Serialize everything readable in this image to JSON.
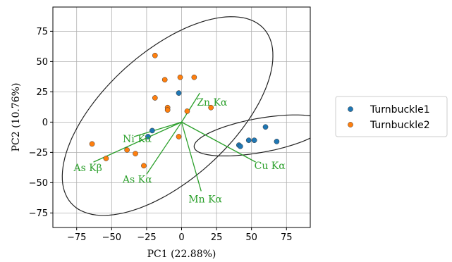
{
  "chart_data": {
    "type": "scatter",
    "xlabel": "PC1 (22.88%)",
    "ylabel": "PC2 (10.76%)",
    "xlim": [
      -92,
      92
    ],
    "ylim": [
      -87,
      95
    ],
    "xticks": [
      -75,
      -50,
      -25,
      0,
      25,
      50,
      75
    ],
    "yticks": [
      -75,
      -50,
      -25,
      0,
      25,
      50,
      75
    ],
    "grid": true,
    "legend_position": "right",
    "series": [
      {
        "name": "Turnbuckle1",
        "color": "#1f77b4",
        "points": [
          {
            "x": -2,
            "y": 24
          },
          {
            "x": -21,
            "y": -7
          },
          {
            "x": -24,
            "y": -12
          },
          {
            "x": 41,
            "y": -19
          },
          {
            "x": 42,
            "y": -20
          },
          {
            "x": 48,
            "y": -15
          },
          {
            "x": 52,
            "y": -15
          },
          {
            "x": 60,
            "y": -4
          },
          {
            "x": 68,
            "y": -16
          }
        ]
      },
      {
        "name": "Turnbuckle2",
        "color": "#ff7f0e",
        "points": [
          {
            "x": -19,
            "y": 55
          },
          {
            "x": -12,
            "y": 35
          },
          {
            "x": -1,
            "y": 37
          },
          {
            "x": 9,
            "y": 37
          },
          {
            "x": -19,
            "y": 20
          },
          {
            "x": -10,
            "y": 12
          },
          {
            "x": -10,
            "y": 10
          },
          {
            "x": 4,
            "y": 9
          },
          {
            "x": 21,
            "y": 12
          },
          {
            "x": -2,
            "y": -12
          },
          {
            "x": -64,
            "y": -18
          },
          {
            "x": -39,
            "y": -23
          },
          {
            "x": -33,
            "y": -26
          },
          {
            "x": -54,
            "y": -30
          },
          {
            "x": -27,
            "y": -36
          }
        ]
      }
    ],
    "loadings": [
      {
        "label": "Zn Kα",
        "x": 0,
        "y": 0,
        "x2": 13,
        "y2": 24
      },
      {
        "label": "Ni Kα",
        "x": 0,
        "y": 0,
        "x2": -34,
        "y2": -12
      },
      {
        "label": "As Kβ",
        "x": 0,
        "y": 0,
        "x2": -63,
        "y2": -33
      },
      {
        "label": "As Kα",
        "x": 0,
        "y": 0,
        "x2": -25,
        "y2": -43
      },
      {
        "label": "Mn Kα",
        "x": 0,
        "y": 0,
        "x2": 14,
        "y2": -57
      },
      {
        "label": "Cu Kα",
        "x": 0,
        "y": 0,
        "x2": 53,
        "y2": -33
      }
    ],
    "loading_color": "#2ca02c",
    "ellipses": [
      {
        "cx": -10,
        "cy": 5,
        "rx": 100,
        "ry": 49,
        "angle_deg": 49
      },
      {
        "cx": 56,
        "cy": -11,
        "rx": 48,
        "ry": 14,
        "angle_deg": 12
      }
    ]
  }
}
